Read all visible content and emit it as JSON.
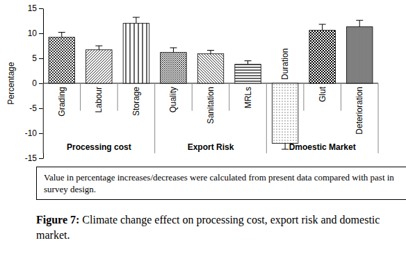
{
  "chart_data": {
    "type": "bar",
    "title": "Figure 7: Climate change effect on processing cost, export risk and domestic market.",
    "y_label": "Percentage",
    "categories": [
      "Grading",
      "Labour",
      "Storage",
      "Quality",
      "Sanitation",
      "MRLs",
      "Duration",
      "Glut",
      "Deterioration"
    ],
    "values": [
      9.2,
      6.7,
      12,
      6.2,
      5.9,
      3.8,
      -12,
      10.6,
      11.3
    ],
    "errors": [
      1.0,
      0.8,
      1.2,
      0.9,
      0.7,
      0.7,
      1.2,
      1.2,
      1.3
    ],
    "group_labels": [
      "Processing cost",
      "Export Risk",
      "Dmoestic Market"
    ],
    "annotations": [
      "Value in percentage increases/decreases were calculated from present data compared with past in survey design."
    ],
    "color": "#000000",
    "ylim": [
      -15,
      15
    ],
    "yticks": [
      -15,
      -10,
      -5,
      0,
      5,
      10,
      15
    ],
    "grid": false
  }
}
